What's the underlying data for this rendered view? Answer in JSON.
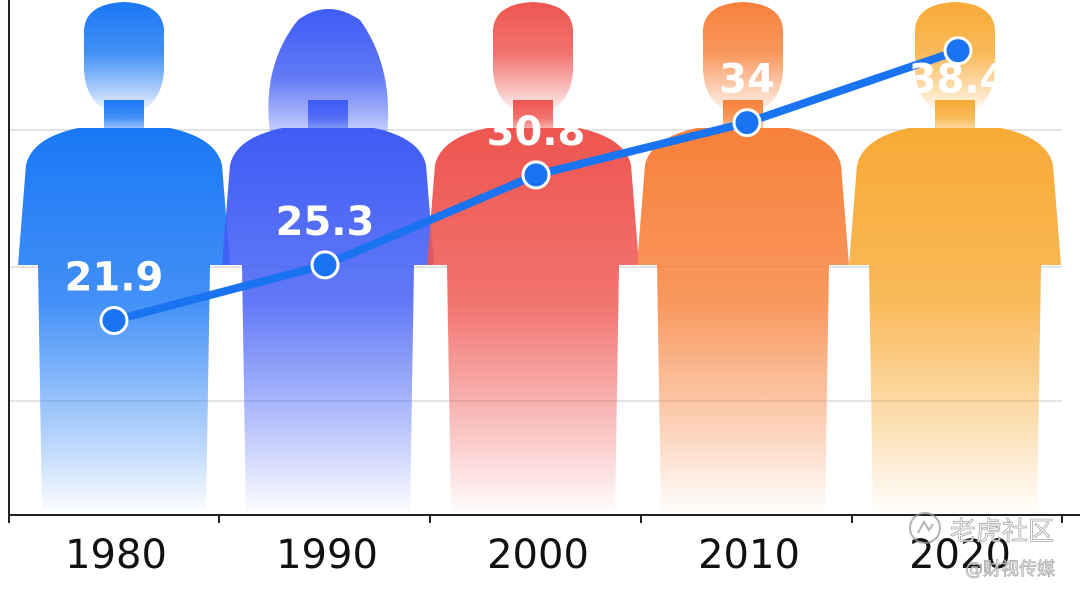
{
  "chart_data": {
    "type": "line",
    "title": "",
    "xlabel": "",
    "ylabel": "",
    "x": [
      "1980",
      "1990",
      "2000",
      "2010",
      "2020"
    ],
    "series": [
      {
        "values": [
          21.9,
          25.3,
          30.8,
          34,
          38.4
        ]
      }
    ],
    "value_labels": [
      "21.9",
      "25.3",
      "30.8",
      "34",
      "38.4"
    ],
    "ylim": [
      10,
      41.5
    ],
    "grid": true,
    "line_color": "#1a73f0",
    "figure_colors": [
      "#1a78f5",
      "#3f5cf5",
      "#ee5550",
      "#f7813a",
      "#f8aa35"
    ]
  },
  "watermark": {
    "primary": "老虎社区",
    "secondary": "@财视传媒"
  }
}
